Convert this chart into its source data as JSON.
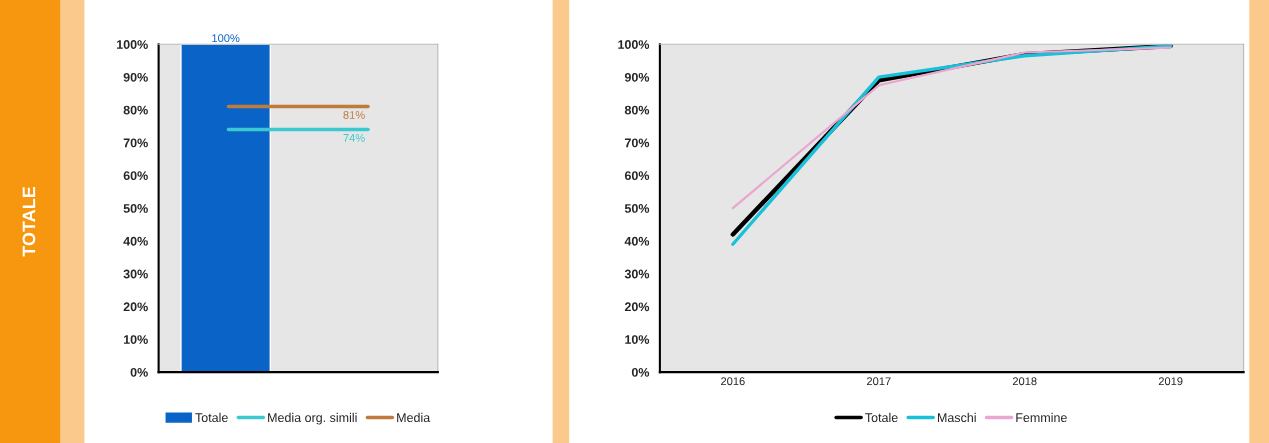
{
  "chart_data": [
    {
      "type": "bar",
      "categories": [
        null
      ],
      "series": [
        {
          "name": "Totale",
          "color": "#0a64c8",
          "values": [
            100
          ],
          "value_labels": [
            "100%"
          ]
        }
      ],
      "ref_lines": [
        {
          "axis": "y",
          "value": 81,
          "label": "Media",
          "color": "#c07a3c"
        },
        {
          "axis": "y",
          "value": 74,
          "label": "Media org. simili",
          "color": "#3cc8d0"
        }
      ],
      "annotations": [
        "TOTALE",
        {
          "text": "81%",
          "y": 81
        },
        {
          "text": "74%",
          "y": 74
        }
      ],
      "ylim": [
        0,
        100
      ],
      "yticks": [
        {
          "value": 0,
          "label": "0%"
        },
        {
          "value": 10,
          "label": "10%"
        },
        {
          "value": 20,
          "label": "20%"
        },
        {
          "value": 30,
          "label": "30%"
        },
        {
          "value": 40,
          "label": "40%"
        },
        {
          "value": 50,
          "label": "50%"
        },
        {
          "value": 60,
          "label": "60%"
        },
        {
          "value": 70,
          "label": "70%"
        },
        {
          "value": 80,
          "label": "80%"
        },
        {
          "value": 90,
          "label": "90%"
        },
        {
          "value": 100,
          "label": "100%"
        }
      ],
      "grid": false,
      "legend": "bottom"
    },
    {
      "type": "line",
      "categories": [
        "2016",
        "2017",
        "2018",
        "2019"
      ],
      "series": [
        {
          "name": "Totale",
          "color": "#000000",
          "values": [
            42,
            89,
            97,
            99.5
          ]
        },
        {
          "name": "Maschi",
          "color": "#18c0d8",
          "values": [
            39,
            90,
            96.5,
            99.5
          ]
        },
        {
          "name": "Femmine",
          "color": "#eaa6d0",
          "values": [
            50,
            87.5,
            97.5,
            99
          ]
        }
      ],
      "ylim": [
        0,
        100
      ],
      "yticks": [
        {
          "value": 0,
          "label": "0%"
        },
        {
          "value": 10,
          "label": "10%"
        },
        {
          "value": 20,
          "label": "20%"
        },
        {
          "value": 30,
          "label": "30%"
        },
        {
          "value": 40,
          "label": "40%"
        },
        {
          "value": 50,
          "label": "50%"
        },
        {
          "value": 60,
          "label": "60%"
        },
        {
          "value": 70,
          "label": "70%"
        },
        {
          "value": 80,
          "label": "80%"
        },
        {
          "value": 90,
          "label": "90%"
        },
        {
          "value": 100,
          "label": "100%"
        }
      ],
      "grid": false,
      "legend": "bottom"
    }
  ]
}
